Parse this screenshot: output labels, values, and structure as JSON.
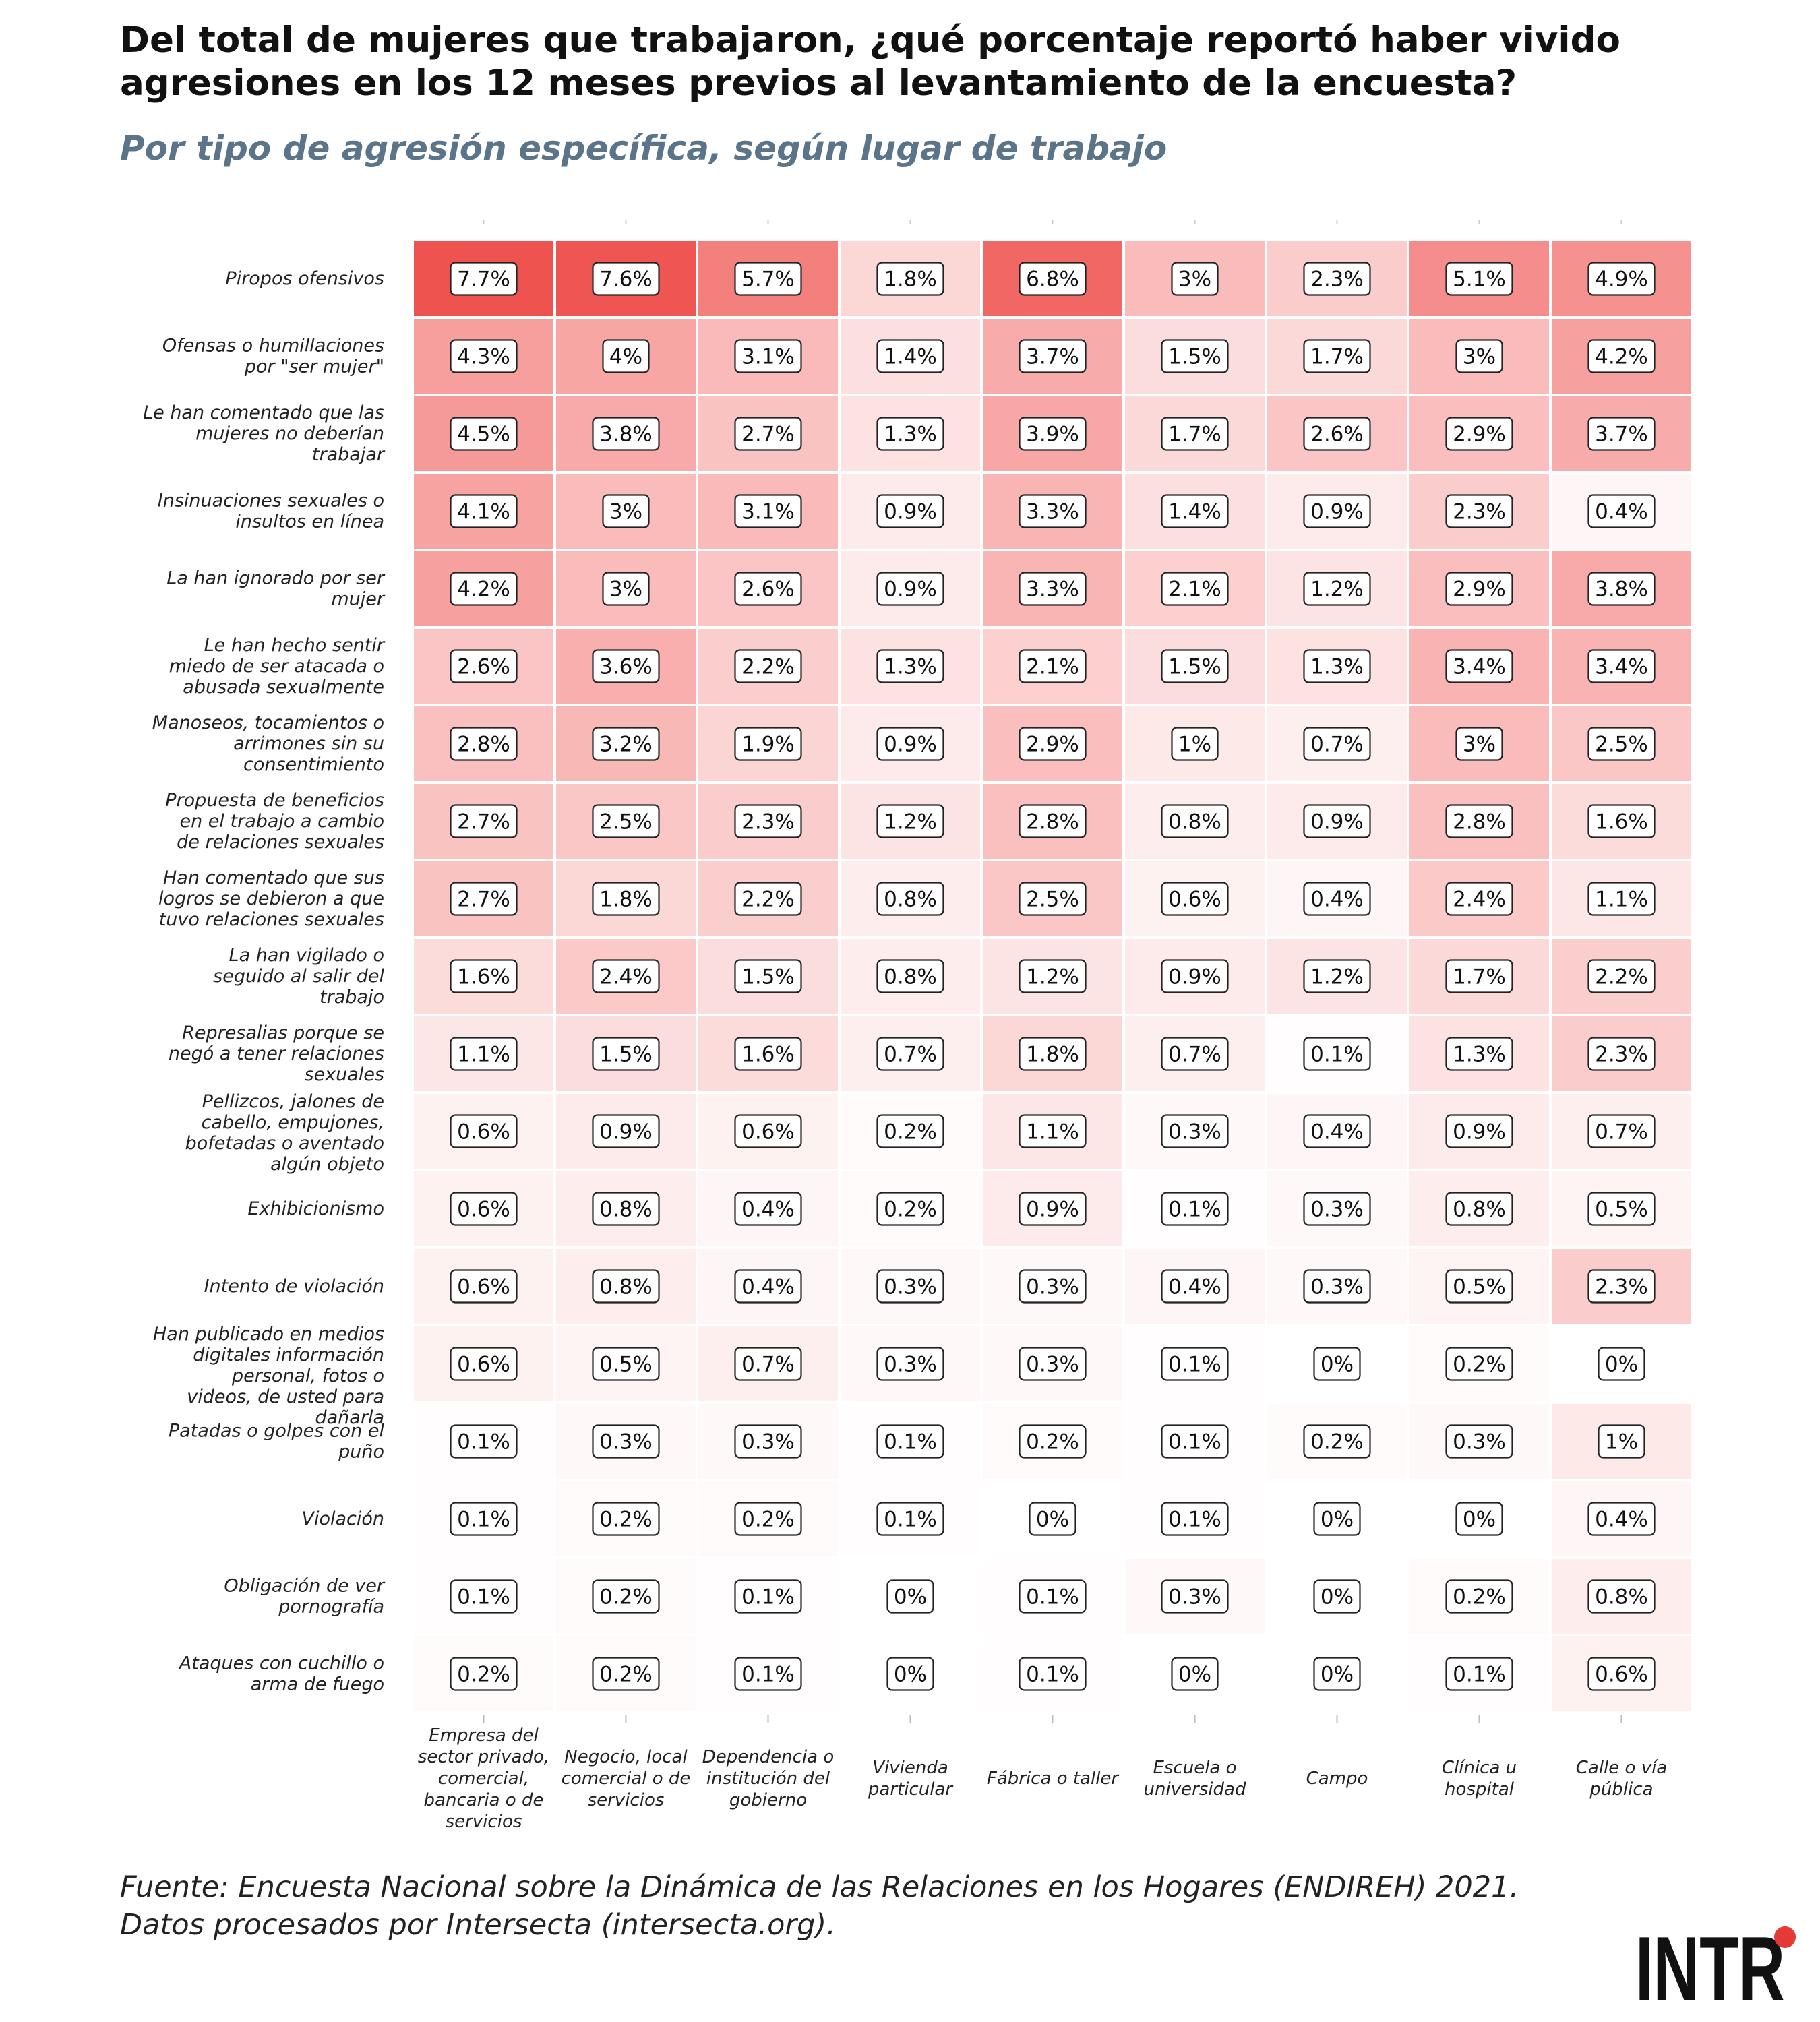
{
  "header": {
    "title_line1": "Del total de mujeres que trabajaron, ¿qué porcentaje reportó haber vivido",
    "title_line2": "agresiones en los 12 meses previos al levantamiento de la encuesta?",
    "subtitle": "Por tipo de agresión específica, según lugar de trabajo"
  },
  "footer": {
    "source_line1": "Fuente: Encuesta Nacional sobre la Dinámica de las Relaciones en los Hogares (ENDIREH) 2021.",
    "source_line2": "Datos procesados por Intersecta (intersecta.org).",
    "logo_text": "INTR"
  },
  "colors": {
    "high": "#ef5350",
    "low": "#ffffff",
    "title": "#111111",
    "subtitle": "#5a7489",
    "logo_accent": "#e53935"
  },
  "chart_data": {
    "type": "heatmap",
    "value_unit": "%",
    "x_categories": [
      [
        "Empresa del",
        "sector privado,",
        "comercial,",
        "bancaria o de",
        "servicios"
      ],
      [
        "Negocio, local",
        "comercial o de",
        "servicios"
      ],
      [
        "Dependencia o",
        "institución del",
        "gobierno"
      ],
      [
        "Vivienda",
        "particular"
      ],
      [
        "Fábrica o taller"
      ],
      [
        "Escuela o",
        "universidad"
      ],
      [
        "Campo"
      ],
      [
        "Clínica u",
        "hospital"
      ],
      [
        "Calle o vía",
        "pública"
      ]
    ],
    "y_categories": [
      [
        "Piropos ofensivos"
      ],
      [
        "Ofensas o humillaciones",
        "por \"ser mujer\""
      ],
      [
        "Le han comentado que las",
        "mujeres no deberían",
        "trabajar"
      ],
      [
        "Insinuaciones sexuales o",
        "insultos en línea"
      ],
      [
        "La han ignorado por ser",
        "mujer"
      ],
      [
        "Le han hecho sentir",
        "miedo de ser atacada o",
        "abusada sexualmente"
      ],
      [
        "Manoseos, tocamientos o",
        "arrimones sin su",
        "consentimiento"
      ],
      [
        "Propuesta de beneficios",
        "en el trabajo a cambio",
        "de relaciones sexuales"
      ],
      [
        "Han comentado que sus",
        "logros se debieron a que",
        "tuvo relaciones sexuales"
      ],
      [
        "La han vigilado o",
        "seguido al salir del",
        "trabajo"
      ],
      [
        "Represalias porque se",
        "negó a tener relaciones",
        "sexuales"
      ],
      [
        "Pellizcos, jalones de",
        "cabello, empujones,",
        "bofetadas o aventado",
        "algún objeto"
      ],
      [
        "Exhibicionismo"
      ],
      [
        "Intento de violación"
      ],
      [
        "Han publicado en medios",
        "digitales información",
        "personal, fotos o",
        "videos, de usted para",
        "dañarla"
      ],
      [
        "Patadas o golpes con el",
        "puño"
      ],
      [
        "Violación"
      ],
      [
        "Obligación de ver",
        "pornografía"
      ],
      [
        "Ataques con cuchillo o",
        "arma de fuego"
      ]
    ],
    "values": [
      [
        7.7,
        7.6,
        5.7,
        1.8,
        6.8,
        3,
        2.3,
        5.1,
        4.9
      ],
      [
        4.3,
        4,
        3.1,
        1.4,
        3.7,
        1.5,
        1.7,
        3,
        4.2
      ],
      [
        4.5,
        3.8,
        2.7,
        1.3,
        3.9,
        1.7,
        2.6,
        2.9,
        3.7
      ],
      [
        4.1,
        3,
        3.1,
        0.9,
        3.3,
        1.4,
        0.9,
        2.3,
        0.4
      ],
      [
        4.2,
        3,
        2.6,
        0.9,
        3.3,
        2.1,
        1.2,
        2.9,
        3.8
      ],
      [
        2.6,
        3.6,
        2.2,
        1.3,
        2.1,
        1.5,
        1.3,
        3.4,
        3.4
      ],
      [
        2.8,
        3.2,
        1.9,
        0.9,
        2.9,
        1,
        0.7,
        3,
        2.5
      ],
      [
        2.7,
        2.5,
        2.3,
        1.2,
        2.8,
        0.8,
        0.9,
        2.8,
        1.6
      ],
      [
        2.7,
        1.8,
        2.2,
        0.8,
        2.5,
        0.6,
        0.4,
        2.4,
        1.1
      ],
      [
        1.6,
        2.4,
        1.5,
        0.8,
        1.2,
        0.9,
        1.2,
        1.7,
        2.2
      ],
      [
        1.1,
        1.5,
        1.6,
        0.7,
        1.8,
        0.7,
        0.1,
        1.3,
        2.3
      ],
      [
        0.6,
        0.9,
        0.6,
        0.2,
        1.1,
        0.3,
        0.4,
        0.9,
        0.7
      ],
      [
        0.6,
        0.8,
        0.4,
        0.2,
        0.9,
        0.1,
        0.3,
        0.8,
        0.5
      ],
      [
        0.6,
        0.8,
        0.4,
        0.3,
        0.3,
        0.4,
        0.3,
        0.5,
        2.3
      ],
      [
        0.6,
        0.5,
        0.7,
        0.3,
        0.3,
        0.1,
        0,
        0.2,
        0
      ],
      [
        0.1,
        0.3,
        0.3,
        0.1,
        0.2,
        0.1,
        0.2,
        0.3,
        1
      ],
      [
        0.1,
        0.2,
        0.2,
        0.1,
        0,
        0.1,
        0,
        0,
        0.4
      ],
      [
        0.1,
        0.2,
        0.1,
        0,
        0.1,
        0.3,
        0,
        0.2,
        0.8
      ],
      [
        0.2,
        0.2,
        0.1,
        0,
        0.1,
        0,
        0,
        0.1,
        0.6
      ]
    ],
    "color_range": [
      0,
      7.7
    ],
    "legend": "none"
  }
}
